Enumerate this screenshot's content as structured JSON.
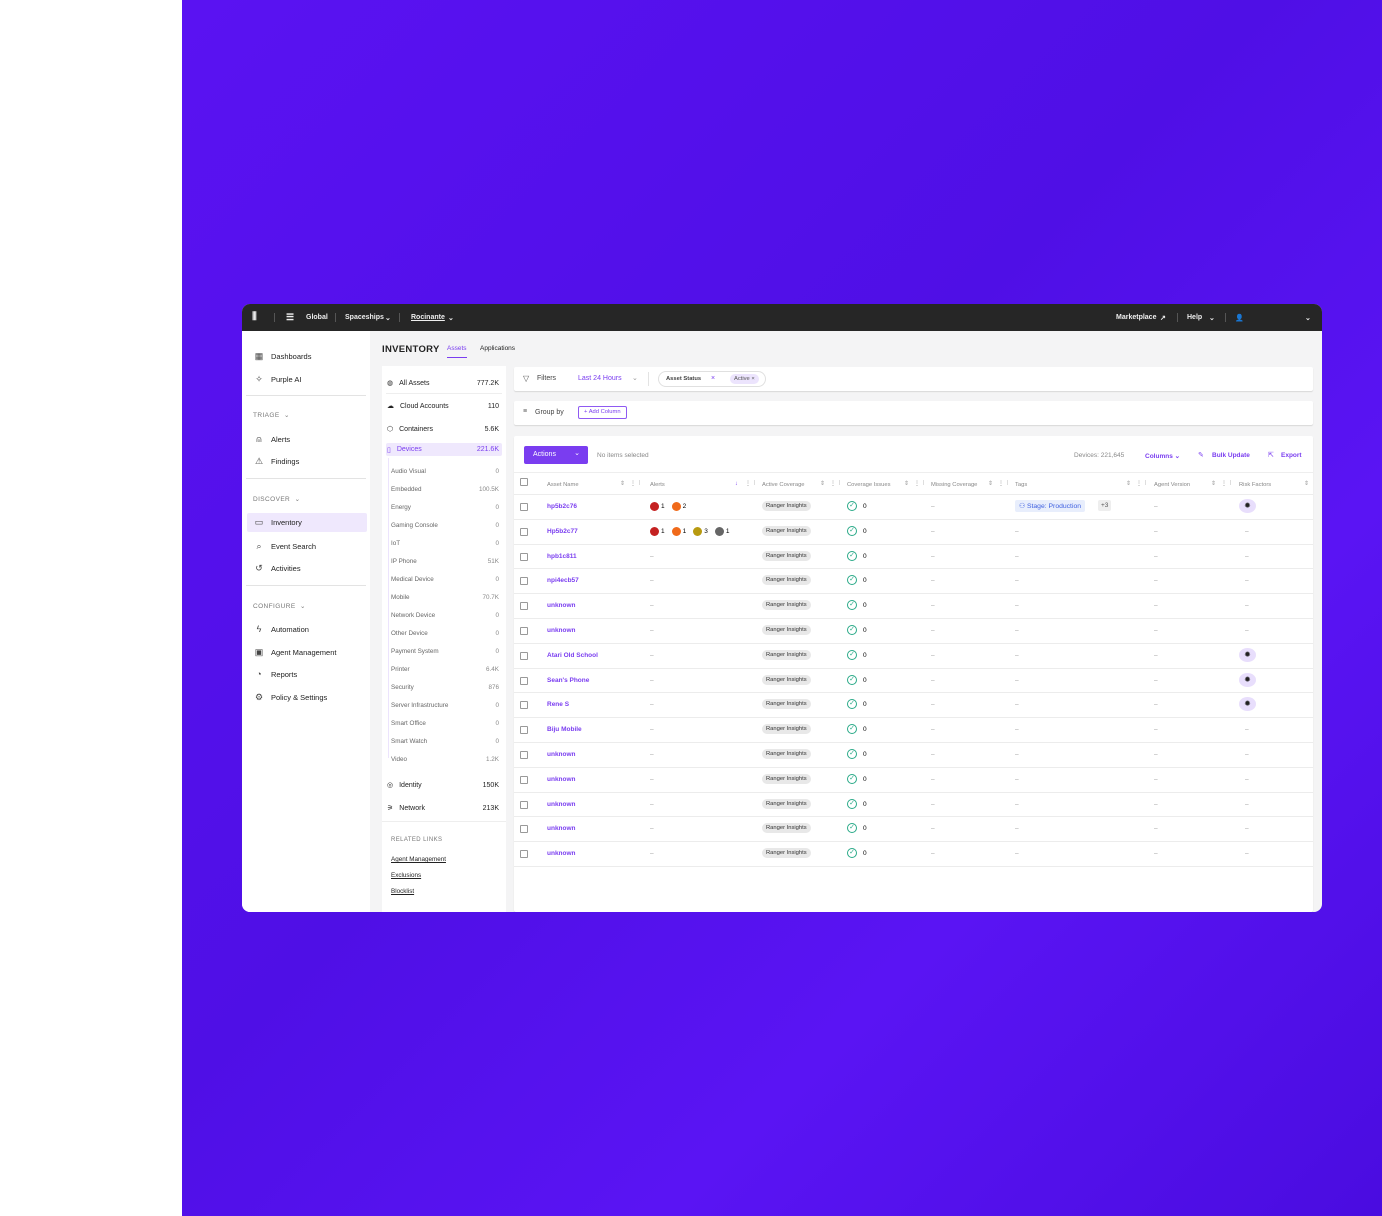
{
  "colors": {
    "accent": "#7a3df0",
    "background": "#5a12f2",
    "critical": "#c42121",
    "high": "#f06a1a",
    "medium": "#b89a10",
    "low": "#666666"
  },
  "topbar": {
    "scope": "Global",
    "account": "Spaceships",
    "site": "Rocinante",
    "marketplace": "Marketplace",
    "help": "Help"
  },
  "nav": {
    "items": [
      {
        "label": "Dashboards",
        "icon": "grid-icon"
      },
      {
        "label": "Purple AI",
        "icon": "sparkle-icon"
      }
    ],
    "triage": "TRIAGE",
    "triage_items": [
      {
        "label": "Alerts",
        "icon": "siren-icon"
      },
      {
        "label": "Findings",
        "icon": "warning-icon"
      }
    ],
    "discover": "DISCOVER",
    "discover_items": [
      {
        "label": "Inventory",
        "icon": "inventory-icon",
        "active": true
      },
      {
        "label": "Event Search",
        "icon": "search-icon"
      },
      {
        "label": "Activities",
        "icon": "history-icon"
      }
    ],
    "configure": "CONFIGURE",
    "configure_items": [
      {
        "label": "Automation",
        "icon": "bolt-icon"
      },
      {
        "label": "Agent Management",
        "icon": "agent-icon"
      },
      {
        "label": "Reports",
        "icon": "pie-icon"
      },
      {
        "label": "Policy & Settings",
        "icon": "gear-icon"
      }
    ]
  },
  "page": {
    "title": "INVENTORY",
    "tabs": [
      "Assets",
      "Applications"
    ],
    "active_tab": "Assets"
  },
  "sub": {
    "top": [
      {
        "label": "All Assets",
        "count": "777.2K"
      },
      {
        "label": "Cloud Accounts",
        "count": "110"
      },
      {
        "label": "Containers",
        "count": "5.6K"
      },
      {
        "label": "Devices",
        "count": "221.6K"
      }
    ],
    "devices": [
      [
        "Audio Visual",
        "0"
      ],
      [
        "Embedded",
        "100.5K"
      ],
      [
        "Energy",
        "0"
      ],
      [
        "Gaming Console",
        "0"
      ],
      [
        "IoT",
        "0"
      ],
      [
        "IP Phone",
        "51K"
      ],
      [
        "Medical Device",
        "0"
      ],
      [
        "Mobile",
        "70.7K"
      ],
      [
        "Network Device",
        "0"
      ],
      [
        "Other Device",
        "0"
      ],
      [
        "Payment System",
        "0"
      ],
      [
        "Printer",
        "6.4K"
      ],
      [
        "Security",
        "876"
      ],
      [
        "Server Infrastructure",
        "0"
      ],
      [
        "Smart Office",
        "0"
      ],
      [
        "Smart Watch",
        "0"
      ],
      [
        "Video",
        "1.2K"
      ]
    ],
    "bottom": [
      {
        "label": "Identity",
        "count": "150K"
      },
      {
        "label": "Network",
        "count": "213K"
      }
    ],
    "related_title": "RELATED LINKS",
    "related": [
      "Agent Management",
      "Exclusions",
      "Blocklist"
    ]
  },
  "filters": {
    "label": "Filters",
    "time": "Last 24 Hours",
    "chip1": "Asset Status",
    "chip2": "Active"
  },
  "group": {
    "label": "Group by",
    "add": "Add Column"
  },
  "toolbar": {
    "actions": "Actions",
    "selected": "No items selected",
    "count": "Devices: 221,645",
    "columns": "Columns",
    "bulk": "Bulk Update",
    "export": "Export"
  },
  "columns": [
    "Asset Name",
    "Alerts",
    "Active Coverage",
    "Coverage Issues",
    "Missing Coverage",
    "Tags",
    "Agent Version",
    "Risk Factors"
  ],
  "rows": [
    {
      "name": "hp5b2c76",
      "alerts": [
        [
          "critical",
          "1"
        ],
        [
          "high",
          "2"
        ]
      ],
      "coverage": "Ranger Insights",
      "issues": "0",
      "tag": "Stage: Production",
      "tag_more": "+3",
      "risk": true
    },
    {
      "name": "Hp5b2c77",
      "alerts": [
        [
          "critical",
          "1"
        ],
        [
          "high",
          "1"
        ],
        [
          "medium",
          "3"
        ],
        [
          "low",
          "1"
        ]
      ],
      "coverage": "Ranger Insights",
      "issues": "0",
      "risk": false
    },
    {
      "name": "hpb1c811",
      "alerts": [],
      "coverage": "Ranger Insights",
      "issues": "0",
      "risk": false
    },
    {
      "name": "npi4ecb57",
      "alerts": [],
      "coverage": "Ranger Insights",
      "issues": "0",
      "risk": false
    },
    {
      "name": "unknown",
      "alerts": [],
      "coverage": "Ranger Insights",
      "issues": "0",
      "risk": false
    },
    {
      "name": "unknown",
      "alerts": [],
      "coverage": "Ranger Insights",
      "issues": "0",
      "risk": false
    },
    {
      "name": "Atari Old School",
      "alerts": [],
      "coverage": "Ranger Insights",
      "issues": "0",
      "risk": true
    },
    {
      "name": "Sean's Phone",
      "alerts": [],
      "coverage": "Ranger Insights",
      "issues": "0",
      "risk": true
    },
    {
      "name": "Rene S",
      "alerts": [],
      "coverage": "Ranger Insights",
      "issues": "0",
      "risk": true
    },
    {
      "name": "Biju Mobile",
      "alerts": [],
      "coverage": "Ranger Insights",
      "issues": "0",
      "risk": false
    },
    {
      "name": "unknown",
      "alerts": [],
      "coverage": "Ranger Insights",
      "issues": "0",
      "risk": false
    },
    {
      "name": "unknown",
      "alerts": [],
      "coverage": "Ranger Insights",
      "issues": "0",
      "risk": false
    },
    {
      "name": "unknown",
      "alerts": [],
      "coverage": "Ranger Insights",
      "issues": "0",
      "risk": false
    },
    {
      "name": "unknown",
      "alerts": [],
      "coverage": "Ranger Insights",
      "issues": "0",
      "risk": false
    },
    {
      "name": "unknown",
      "alerts": [],
      "coverage": "Ranger Insights",
      "issues": "0",
      "risk": false
    }
  ]
}
